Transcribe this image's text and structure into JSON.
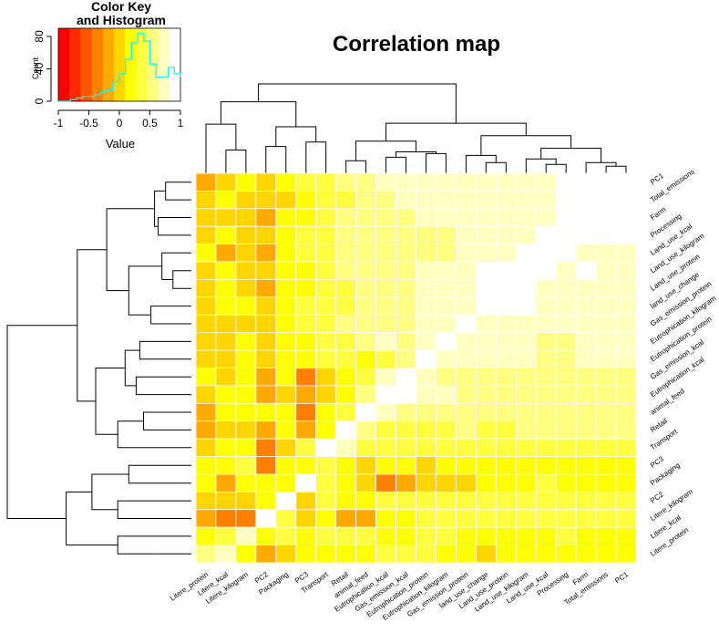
{
  "chart_data": [
    {
      "type": "heatmap",
      "title": "Correlation map",
      "row_labels": [
        "PC1",
        "Total_emissions",
        "Farm",
        "Processing",
        "Land_use_kcal",
        "Land_use_kilogram",
        "Land_use_protein",
        "land_use_change",
        "Gas_emission_protein",
        "Eutrophication_kilogram",
        "Eutrophication_protein",
        "Gas_emission_kcal",
        "Eutrophication_kcal",
        "animal_feed",
        "Retail",
        "Transport",
        "PC3",
        "Packaging",
        "PC2",
        "Litere_kilogram",
        "Litere_kcal",
        "Litere_protein"
      ],
      "col_labels": [
        "Litere_protein",
        "Litere_kcal",
        "Litere_kilogram",
        "PC2",
        "Packaging",
        "PC3",
        "Transport",
        "Retail",
        "animal_feed",
        "Eutrophication_kcal",
        "Gas_emission_kcal",
        "Eutrophication_protein",
        "Eutrophication_kilogram",
        "Gas_emission_protein",
        "land_use_change",
        "Land_use_protein",
        "Land_use_kilogram",
        "Land_use_kcal",
        "Processing",
        "Farm",
        "Total_emissions",
        "PC1"
      ],
      "values": [
        [
          -0.2,
          0.0,
          0.1,
          -0.1,
          0.1,
          0.3,
          0.4,
          0.5,
          0.6,
          0.7,
          0.7,
          0.8,
          0.8,
          0.8,
          0.7,
          0.8,
          0.8,
          0.8,
          0.9,
          0.9,
          1.0,
          1.0
        ],
        [
          -0.1,
          0.1,
          0.0,
          -0.1,
          0.0,
          0.2,
          0.3,
          0.4,
          0.6,
          0.6,
          0.7,
          0.7,
          0.8,
          0.7,
          0.7,
          0.8,
          0.8,
          0.8,
          0.9,
          1.0,
          1.0,
          1.0
        ],
        [
          -0.1,
          0.0,
          0.0,
          -0.2,
          0.1,
          0.2,
          0.3,
          0.5,
          0.6,
          0.6,
          0.6,
          0.7,
          0.7,
          0.7,
          0.7,
          0.8,
          0.8,
          0.8,
          0.9,
          1.0,
          0.9,
          0.9
        ],
        [
          0.0,
          0.1,
          0.0,
          0.0,
          0.2,
          0.3,
          0.4,
          0.5,
          0.6,
          0.6,
          0.5,
          0.6,
          0.6,
          0.7,
          0.7,
          0.8,
          0.8,
          0.9,
          1.0,
          0.9,
          0.9,
          0.9
        ],
        [
          0.1,
          -0.3,
          0.0,
          -0.2,
          0.1,
          0.3,
          0.4,
          0.5,
          0.5,
          0.6,
          0.6,
          0.6,
          0.6,
          0.7,
          0.8,
          0.8,
          0.9,
          1.0,
          0.9,
          0.8,
          0.8,
          0.8
        ],
        [
          0.0,
          0.1,
          0.0,
          -0.1,
          0.1,
          0.2,
          0.3,
          0.5,
          0.6,
          0.6,
          0.6,
          0.7,
          0.7,
          0.7,
          0.9,
          0.9,
          1.0,
          0.9,
          0.8,
          0.9,
          0.8,
          0.8
        ],
        [
          0.0,
          0.1,
          0.0,
          -0.2,
          0.1,
          0.2,
          0.3,
          0.4,
          0.6,
          0.6,
          0.6,
          0.7,
          0.7,
          0.7,
          0.9,
          1.0,
          0.9,
          0.8,
          0.8,
          0.8,
          0.8,
          0.8
        ],
        [
          0.0,
          0.1,
          0.1,
          -0.1,
          0.1,
          0.3,
          0.4,
          0.4,
          0.5,
          0.6,
          0.6,
          0.7,
          0.7,
          0.8,
          1.0,
          0.9,
          0.9,
          0.8,
          0.7,
          0.7,
          0.7,
          0.7
        ],
        [
          -0.1,
          0.0,
          0.0,
          0.0,
          0.2,
          0.3,
          0.4,
          0.5,
          0.6,
          0.6,
          0.6,
          0.8,
          0.8,
          1.0,
          0.8,
          0.7,
          0.7,
          0.7,
          0.7,
          0.7,
          0.7,
          0.8
        ],
        [
          0.0,
          0.0,
          0.1,
          -0.1,
          0.1,
          0.2,
          0.3,
          0.4,
          0.5,
          0.7,
          0.6,
          0.7,
          1.0,
          0.8,
          0.7,
          0.7,
          0.7,
          0.6,
          0.6,
          0.7,
          0.7,
          0.7
        ],
        [
          0.0,
          0.0,
          0.1,
          -0.1,
          0.1,
          0.2,
          0.4,
          0.4,
          0.2,
          0.4,
          0.6,
          1.0,
          0.7,
          0.8,
          0.7,
          0.7,
          0.7,
          0.6,
          0.6,
          0.7,
          0.7,
          0.7
        ],
        [
          0.1,
          0.0,
          0.1,
          -0.3,
          0.1,
          -0.4,
          0.0,
          0.1,
          0.4,
          0.8,
          1.0,
          0.7,
          0.6,
          0.6,
          0.6,
          0.6,
          0.6,
          0.6,
          0.5,
          0.6,
          0.6,
          0.6
        ],
        [
          0.0,
          0.2,
          0.1,
          -0.2,
          0.0,
          -0.3,
          0.0,
          0.1,
          0.5,
          1.0,
          0.9,
          0.7,
          0.7,
          0.6,
          0.6,
          0.6,
          0.6,
          0.6,
          0.6,
          0.6,
          0.6,
          0.6
        ],
        [
          -0.3,
          0.1,
          0.1,
          0.1,
          0.2,
          -0.5,
          0.2,
          0.3,
          1.0,
          0.7,
          0.5,
          0.6,
          0.5,
          0.6,
          0.5,
          0.6,
          0.6,
          0.5,
          0.6,
          0.6,
          0.6,
          0.6
        ],
        [
          -0.2,
          0.0,
          0.0,
          -0.2,
          0.1,
          -0.2,
          0.1,
          1.0,
          0.5,
          0.4,
          0.4,
          0.4,
          0.4,
          0.5,
          0.4,
          0.4,
          0.5,
          0.5,
          0.5,
          0.5,
          0.5,
          0.5
        ],
        [
          0.0,
          0.1,
          0.2,
          -0.4,
          0.0,
          0.3,
          1.0,
          0.7,
          0.4,
          0.3,
          0.3,
          0.4,
          0.3,
          0.4,
          0.4,
          0.4,
          0.4,
          0.4,
          0.4,
          0.4,
          0.4,
          0.4
        ],
        [
          0.1,
          0.2,
          0.3,
          -0.4,
          0.1,
          0.1,
          0.3,
          0.2,
          0.0,
          0.1,
          0.1,
          0.0,
          0.1,
          0.1,
          0.2,
          0.2,
          0.2,
          0.2,
          0.2,
          0.2,
          0.2,
          0.2
        ],
        [
          0.1,
          -0.2,
          0.1,
          0.1,
          0.1,
          1.0,
          0.4,
          0.1,
          -0.1,
          -0.4,
          -0.2,
          -0.1,
          -0.1,
          0.0,
          0.1,
          0.1,
          0.2,
          0.3,
          0.1,
          0.2,
          0.1,
          0.1
        ],
        [
          0.0,
          -0.1,
          0.0,
          0.2,
          1.0,
          -0.1,
          0.3,
          0.1,
          0.2,
          0.3,
          0.3,
          0.3,
          0.3,
          0.4,
          0.4,
          0.4,
          0.4,
          0.4,
          0.4,
          0.4,
          0.3,
          0.4
        ],
        [
          -0.3,
          -0.4,
          -0.5,
          1.0,
          0.4,
          -0.1,
          0.1,
          -0.2,
          -0.3,
          0.1,
          0.2,
          0.3,
          0.3,
          0.3,
          0.4,
          0.4,
          0.4,
          0.4,
          0.4,
          0.4,
          0.3,
          0.3
        ],
        [
          0.2,
          0.4,
          0.8,
          0.1,
          0.3,
          0.2,
          0.3,
          0.4,
          0.4,
          0.2,
          0.2,
          0.4,
          0.3,
          0.2,
          0.1,
          0.2,
          0.2,
          0.2,
          0.3,
          0.2,
          0.2,
          0.2
        ],
        [
          0.5,
          0.7,
          0.1,
          -0.3,
          0.0,
          0.1,
          0.1,
          0.1,
          0.2,
          0.3,
          0.4,
          0.3,
          0.2,
          0.2,
          0.0,
          0.1,
          0.1,
          0.1,
          0.1,
          0.2,
          0.2,
          0.1
        ]
      ],
      "colorscale": [
        "#FF0000",
        "#FF2A00",
        "#FF5500",
        "#FF8000",
        "#FFAA00",
        "#FFD500",
        "#FFFF00",
        "#FFFF40",
        "#FFFF80",
        "#FFFFBF",
        "#FFFFFF"
      ],
      "breaks": [
        -1,
        1
      ],
      "grid_color": "#FFFFFF"
    },
    {
      "type": "area",
      "title": "Color Key\nand Histogram",
      "xlabel": "Value",
      "ylabel": "Count",
      "xticks": [
        "-1",
        "-0.5",
        "0",
        "0.5",
        "1"
      ],
      "yticks": [
        "0",
        "40",
        "80"
      ],
      "xlim": [
        -1,
        1
      ],
      "ylim": [
        0,
        90
      ],
      "bins": [
        -1.0,
        -0.9,
        -0.8,
        -0.7,
        -0.6,
        -0.5,
        -0.4,
        -0.3,
        -0.2,
        -0.1,
        0.0,
        0.1,
        0.2,
        0.3,
        0.4,
        0.5,
        0.6,
        0.7,
        0.8,
        0.9,
        1.0
      ],
      "counts": [
        0,
        0,
        2,
        4,
        6,
        6,
        8,
        12,
        14,
        24,
        34,
        52,
        72,
        84,
        74,
        46,
        30,
        30,
        42,
        34,
        30
      ],
      "density_line_color": "#00FFFF",
      "hist_line_color": "#00FFFF"
    }
  ],
  "row_dendrogram": {
    "side": "left"
  },
  "col_dendrogram": {
    "side": "top"
  }
}
